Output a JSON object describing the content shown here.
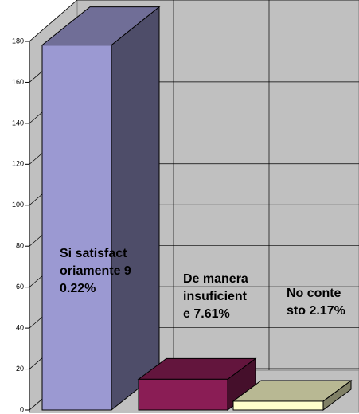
{
  "chart_data": {
    "type": "bar3d",
    "categories": [
      "Si satisfactoriamente",
      "De manera insuficiente",
      "No contesto"
    ],
    "percent_labels": [
      "90.22%",
      "7.61%",
      "2.17%"
    ],
    "values": [
      166,
      14,
      4
    ],
    "colors": [
      "#9b99d2",
      "#8a1d55",
      "#ffffcc"
    ],
    "ylim": [
      0,
      180
    ],
    "yticks": [
      0,
      20,
      40,
      60,
      80,
      100,
      120,
      140,
      160,
      180
    ],
    "grid": true
  }
}
